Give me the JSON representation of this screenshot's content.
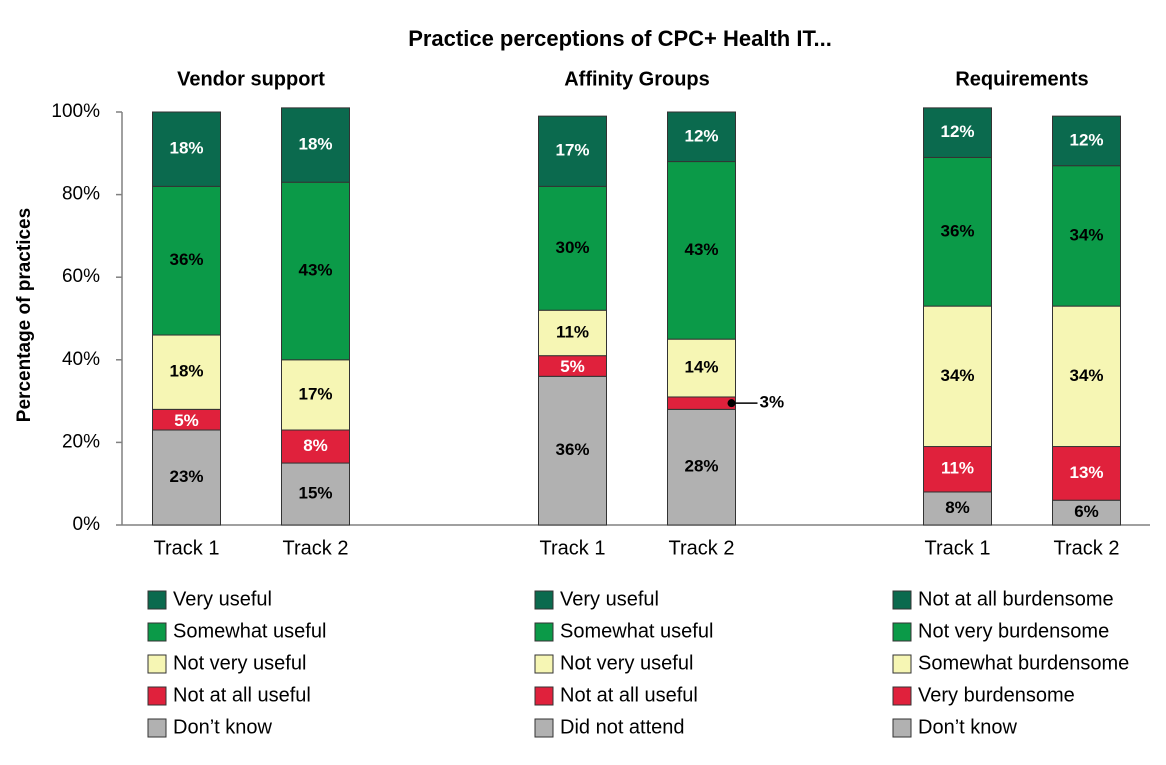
{
  "title": "Practice perceptions of CPC+ Health IT...",
  "chart_data": [
    {
      "type": "stacked_bar",
      "title": "Vendor support",
      "ylabel": "Percentage of practices",
      "categories": [
        "Track 1",
        "Track 2"
      ],
      "ylim": [
        0,
        100
      ],
      "yticks": [
        {
          "value": 0,
          "label": "0%"
        },
        {
          "value": 20,
          "label": "20%"
        },
        {
          "value": 40,
          "label": "40%"
        },
        {
          "value": 60,
          "label": "60%"
        },
        {
          "value": 80,
          "label": "80%"
        },
        {
          "value": 100,
          "label": "100%"
        }
      ],
      "series": [
        {
          "name": "Very useful",
          "color": "#0b6a4e",
          "label_color": "#ffffff",
          "values": [
            18,
            18
          ],
          "value_labels": [
            "18%",
            "18%"
          ]
        },
        {
          "name": "Somewhat useful",
          "color": "#0b9a48",
          "label_color": "#000000",
          "values": [
            36,
            43
          ],
          "value_labels": [
            "36%",
            "43%"
          ]
        },
        {
          "name": "Not very useful",
          "color": "#f6f6b4",
          "label_color": "#000000",
          "values": [
            18,
            17
          ],
          "value_labels": [
            "18%",
            "17%"
          ]
        },
        {
          "name": "Not at all useful",
          "color": "#e0213c",
          "label_color": "#ffffff",
          "values": [
            5,
            8
          ],
          "value_labels": [
            "5%",
            "8%"
          ]
        },
        {
          "name": "Don’t know",
          "color": "#b1b1b1",
          "label_color": "#000000",
          "values": [
            23,
            15
          ],
          "value_labels": [
            "23%",
            "15%"
          ]
        }
      ]
    },
    {
      "type": "stacked_bar",
      "title": "Affinity Groups",
      "categories": [
        "Track 1",
        "Track 2"
      ],
      "ylim": [
        0,
        100
      ],
      "series": [
        {
          "name": "Very useful",
          "color": "#0b6a4e",
          "label_color": "#ffffff",
          "values": [
            17,
            12
          ],
          "value_labels": [
            "17%",
            "12%"
          ]
        },
        {
          "name": "Somewhat useful",
          "color": "#0b9a48",
          "label_color": "#000000",
          "values": [
            30,
            43
          ],
          "value_labels": [
            "30%",
            "43%"
          ]
        },
        {
          "name": "Not very useful",
          "color": "#f6f6b4",
          "label_color": "#000000",
          "values": [
            11,
            14
          ],
          "value_labels": [
            "11%",
            "14%"
          ]
        },
        {
          "name": "Not at all useful",
          "color": "#e0213c",
          "label_color": "#ffffff",
          "values": [
            5,
            3
          ],
          "value_labels": [
            "5%",
            "3%"
          ]
        },
        {
          "name": "Did not attend",
          "color": "#b1b1b1",
          "label_color": "#000000",
          "values": [
            36,
            28
          ],
          "value_labels": [
            "36%",
            "28%"
          ]
        }
      ]
    },
    {
      "type": "stacked_bar",
      "title": "Requirements",
      "categories": [
        "Track 1",
        "Track 2"
      ],
      "ylim": [
        0,
        100
      ],
      "series": [
        {
          "name": "Not at all burdensome",
          "color": "#0b6a4e",
          "label_color": "#ffffff",
          "values": [
            12,
            12
          ],
          "value_labels": [
            "12%",
            "12%"
          ]
        },
        {
          "name": "Not very burdensome",
          "color": "#0b9a48",
          "label_color": "#000000",
          "values": [
            36,
            34
          ],
          "value_labels": [
            "36%",
            "34%"
          ]
        },
        {
          "name": "Somewhat burdensome",
          "color": "#f6f6b4",
          "label_color": "#000000",
          "values": [
            34,
            34
          ],
          "value_labels": [
            "34%",
            "34%"
          ]
        },
        {
          "name": "Very burdensome",
          "color": "#e0213c",
          "label_color": "#ffffff",
          "values": [
            11,
            13
          ],
          "value_labels": [
            "11%",
            "13%"
          ]
        },
        {
          "name": "Don’t know",
          "color": "#b1b1b1",
          "label_color": "#000000",
          "values": [
            8,
            6
          ],
          "value_labels": [
            "8%",
            "6%"
          ]
        }
      ]
    }
  ]
}
